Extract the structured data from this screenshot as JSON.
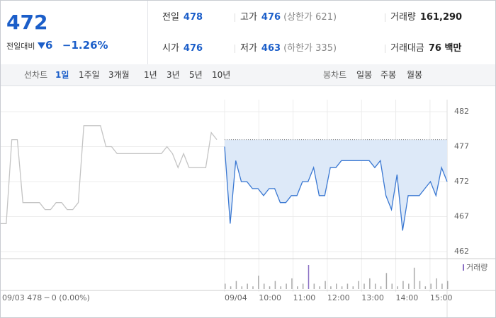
{
  "header": {
    "price": 472,
    "change_label": "전일대비",
    "change": 6,
    "change_pct": "−1.26%",
    "items": [
      {
        "label": "전일",
        "value": "478",
        "note": ""
      },
      {
        "label": "고가",
        "value": "476",
        "note": "(상한가 621)"
      },
      {
        "label": "거래량",
        "value": "161,290",
        "note": ""
      },
      {
        "label": "시가",
        "value": "476",
        "note": ""
      },
      {
        "label": "저가",
        "value": "463",
        "note": "(하한가 335)"
      },
      {
        "label": "거래대금",
        "value": "76 백만",
        "note": ""
      }
    ]
  },
  "tabs": {
    "line_label": "선차트",
    "line_tabs": [
      "1일",
      "1주일",
      "3개월",
      "1년",
      "3년",
      "5년",
      "10년"
    ],
    "candle_label": "봉차트",
    "candle_tabs": [
      "일봉",
      "주봉",
      "월봉"
    ]
  },
  "chart_data": {
    "type": "line",
    "ylim": [
      462,
      482
    ],
    "yticks": [
      462,
      467,
      472,
      477,
      482
    ],
    "xticks": [
      "09/04",
      "10:00",
      "11:00",
      "12:00",
      "13:00",
      "14:00",
      "15:00"
    ],
    "reference": 478,
    "series": [
      {
        "name": "09/03",
        "color": "#c4c4c4",
        "values": [
          466,
          466,
          478,
          478,
          469,
          469,
          469,
          469,
          468,
          468,
          469,
          469,
          468,
          468,
          469,
          480,
          480,
          480,
          480,
          477,
          477,
          476,
          476,
          476,
          476,
          476,
          476,
          476,
          476,
          476,
          477,
          476,
          474,
          476,
          474,
          474,
          474,
          474,
          479,
          478
        ]
      },
      {
        "name": "09/04",
        "color": "#3a78d2",
        "values": [
          477,
          466,
          475,
          472,
          472,
          471,
          471,
          470,
          471,
          471,
          469,
          469,
          470,
          470,
          472,
          472,
          474,
          470,
          470,
          474,
          474,
          475,
          475,
          475,
          475,
          475,
          475,
          474,
          475,
          470,
          468,
          473,
          465,
          470,
          470,
          470,
          471,
          472,
          470,
          474,
          472
        ]
      }
    ],
    "volume_name": "거래량",
    "volume": [
      2,
      1,
      3,
      1,
      2,
      1,
      5,
      2,
      1,
      3,
      1,
      2,
      4,
      1,
      2,
      9,
      2,
      1,
      3,
      1,
      2,
      1,
      2,
      1,
      3,
      2,
      4,
      2,
      1,
      6,
      2,
      1,
      3,
      2,
      8,
      3,
      1,
      2,
      4,
      2,
      3
    ],
    "footer": "09/03  478 ─ 0 (0.00%)"
  }
}
